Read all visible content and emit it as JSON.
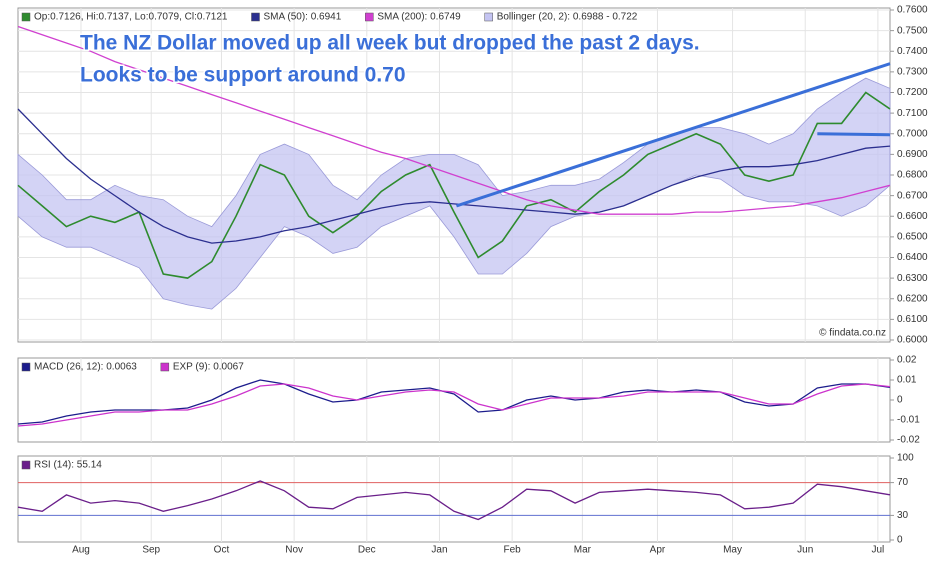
{
  "chart_data": [
    {
      "type": "line",
      "title": "The NZ Dollar moved up all week but dropped the past 2 days.",
      "subtitle": "Looks to be support around 0.70",
      "credit": "© findata.co.nz",
      "x": [
        0,
        1,
        2,
        3,
        4,
        5,
        6,
        7,
        8,
        9,
        10,
        11,
        12,
        13,
        14,
        15,
        16,
        17,
        18,
        19,
        20,
        21,
        22,
        23,
        24,
        25,
        26,
        27,
        28,
        29,
        30,
        31,
        32,
        33,
        34,
        35,
        36
      ],
      "xlim": [
        0,
        36
      ],
      "ylim": [
        0.6,
        0.76
      ],
      "yticks": [
        {
          "value": 0.6,
          "label": "0.6000"
        },
        {
          "value": 0.61,
          "label": "0.6100"
        },
        {
          "value": 0.62,
          "label": "0.6200"
        },
        {
          "value": 0.63,
          "label": "0.6300"
        },
        {
          "value": 0.64,
          "label": "0.6400"
        },
        {
          "value": 0.65,
          "label": "0.6500"
        },
        {
          "value": 0.66,
          "label": "0.6600"
        },
        {
          "value": 0.67,
          "label": "0.6700"
        },
        {
          "value": 0.68,
          "label": "0.6800"
        },
        {
          "value": 0.69,
          "label": "0.6900"
        },
        {
          "value": 0.7,
          "label": "0.7000"
        },
        {
          "value": 0.71,
          "label": "0.7100"
        },
        {
          "value": 0.72,
          "label": "0.7200"
        },
        {
          "value": 0.73,
          "label": "0.7300"
        },
        {
          "value": 0.74,
          "label": "0.7400"
        },
        {
          "value": 0.75,
          "label": "0.7500"
        },
        {
          "value": 0.76,
          "label": "0.7600"
        }
      ],
      "grid": true,
      "band": {
        "name": "Bollinger (20, 2): 0.6988 - 0.722",
        "color": "#c4c4f2",
        "upper": [
          0.69,
          0.68,
          0.668,
          0.668,
          0.675,
          0.67,
          0.668,
          0.66,
          0.655,
          0.67,
          0.69,
          0.695,
          0.69,
          0.675,
          0.668,
          0.68,
          0.688,
          0.69,
          0.69,
          0.685,
          0.67,
          0.672,
          0.675,
          0.675,
          0.678,
          0.686,
          0.695,
          0.7,
          0.703,
          0.703,
          0.7,
          0.695,
          0.7,
          0.712,
          0.72,
          0.727,
          0.722
        ],
        "lower": [
          0.66,
          0.65,
          0.645,
          0.645,
          0.64,
          0.635,
          0.62,
          0.617,
          0.615,
          0.625,
          0.64,
          0.655,
          0.65,
          0.642,
          0.645,
          0.655,
          0.66,
          0.665,
          0.65,
          0.632,
          0.632,
          0.642,
          0.655,
          0.66,
          0.662,
          0.665,
          0.67,
          0.675,
          0.68,
          0.678,
          0.67,
          0.667,
          0.667,
          0.665,
          0.66,
          0.665,
          0.675
        ]
      },
      "series": [
        {
          "name": "Op:0.7126, Hi:0.7137, Lo:0.7079, Cl:0.7121",
          "color": "#2e8b2e",
          "values": [
            0.675,
            0.665,
            0.655,
            0.66,
            0.657,
            0.662,
            0.632,
            0.63,
            0.638,
            0.66,
            0.685,
            0.68,
            0.66,
            0.652,
            0.66,
            0.672,
            0.68,
            0.685,
            0.662,
            0.64,
            0.648,
            0.665,
            0.668,
            0.662,
            0.672,
            0.68,
            0.69,
            0.695,
            0.7,
            0.695,
            0.68,
            0.677,
            0.68,
            0.705,
            0.705,
            0.72,
            0.712
          ]
        },
        {
          "name": "SMA (50): 0.6941",
          "color": "#2b2f8f",
          "values": [
            0.712,
            0.7,
            0.688,
            0.678,
            0.67,
            0.662,
            0.655,
            0.65,
            0.647,
            0.648,
            0.65,
            0.653,
            0.655,
            0.658,
            0.661,
            0.664,
            0.666,
            0.667,
            0.666,
            0.665,
            0.664,
            0.663,
            0.662,
            0.661,
            0.662,
            0.665,
            0.67,
            0.675,
            0.679,
            0.682,
            0.684,
            0.684,
            0.685,
            0.687,
            0.69,
            0.693,
            0.694
          ]
        },
        {
          "name": "SMA (200): 0.6749",
          "color": "#d040d0",
          "values": [
            0.752,
            0.748,
            0.744,
            0.74,
            0.735,
            0.731,
            0.727,
            0.723,
            0.719,
            0.715,
            0.711,
            0.707,
            0.703,
            0.699,
            0.695,
            0.691,
            0.688,
            0.684,
            0.68,
            0.676,
            0.672,
            0.668,
            0.665,
            0.663,
            0.661,
            0.661,
            0.661,
            0.661,
            0.662,
            0.662,
            0.663,
            0.664,
            0.665,
            0.667,
            0.669,
            0.672,
            0.675
          ]
        }
      ],
      "trendlines": [
        {
          "color": "#3a6fd8",
          "x": [
            18.1,
            36
          ],
          "y": [
            0.665,
            0.734
          ]
        },
        {
          "color": "#3a6fd8",
          "x": [
            33,
            36
          ],
          "y": [
            0.7,
            0.6995
          ]
        }
      ]
    },
    {
      "type": "line",
      "ylim": [
        -0.02,
        0.02
      ],
      "yticks": [
        0.02,
        0.01,
        0,
        -0.01,
        -0.02
      ],
      "series": [
        {
          "name": "MACD (26, 12): 0.0063",
          "color": "#1c1c8c",
          "values": [
            -0.012,
            -0.011,
            -0.008,
            -0.006,
            -0.005,
            -0.005,
            -0.005,
            -0.004,
            0.0,
            0.006,
            0.01,
            0.008,
            0.003,
            -0.001,
            0.0,
            0.004,
            0.005,
            0.006,
            0.003,
            -0.006,
            -0.005,
            0.0,
            0.002,
            0.0,
            0.001,
            0.004,
            0.005,
            0.004,
            0.005,
            0.004,
            -0.001,
            -0.003,
            -0.002,
            0.006,
            0.008,
            0.008,
            0.0063
          ]
        },
        {
          "name": "EXP (9): 0.0067",
          "color": "#cc33cc",
          "values": [
            -0.013,
            -0.012,
            -0.01,
            -0.008,
            -0.006,
            -0.006,
            -0.005,
            -0.005,
            -0.002,
            0.002,
            0.007,
            0.008,
            0.006,
            0.002,
            0.0,
            0.002,
            0.004,
            0.005,
            0.004,
            -0.002,
            -0.005,
            -0.002,
            0.001,
            0.001,
            0.001,
            0.002,
            0.004,
            0.004,
            0.004,
            0.004,
            0.001,
            -0.002,
            -0.002,
            0.003,
            0.007,
            0.008,
            0.0067
          ]
        }
      ]
    },
    {
      "type": "line",
      "ylim": [
        0,
        100
      ],
      "yticks": [
        100,
        70,
        30,
        0
      ],
      "levels": [
        {
          "value": 70,
          "color": "#e06060"
        },
        {
          "value": 30,
          "color": "#6070d0"
        }
      ],
      "xticks": [
        {
          "value": 2.6,
          "label": "Aug"
        },
        {
          "value": 5.5,
          "label": "Sep"
        },
        {
          "value": 8.4,
          "label": "Oct"
        },
        {
          "value": 11.4,
          "label": "Nov"
        },
        {
          "value": 14.4,
          "label": "Dec"
        },
        {
          "value": 17.4,
          "label": "Jan"
        },
        {
          "value": 20.4,
          "label": "Feb"
        },
        {
          "value": 23.3,
          "label": "Mar"
        },
        {
          "value": 26.4,
          "label": "Apr"
        },
        {
          "value": 29.5,
          "label": "May"
        },
        {
          "value": 32.5,
          "label": "Jun"
        },
        {
          "value": 35.5,
          "label": "Jul"
        }
      ],
      "series": [
        {
          "name": "RSI (14): 55.14",
          "color": "#6a1f8a",
          "values": [
            40,
            35,
            55,
            45,
            48,
            45,
            35,
            42,
            50,
            60,
            72,
            60,
            40,
            38,
            52,
            55,
            58,
            55,
            35,
            25,
            40,
            62,
            60,
            45,
            58,
            60,
            62,
            60,
            58,
            55,
            38,
            40,
            45,
            68,
            65,
            60,
            55.14
          ]
        }
      ]
    }
  ]
}
